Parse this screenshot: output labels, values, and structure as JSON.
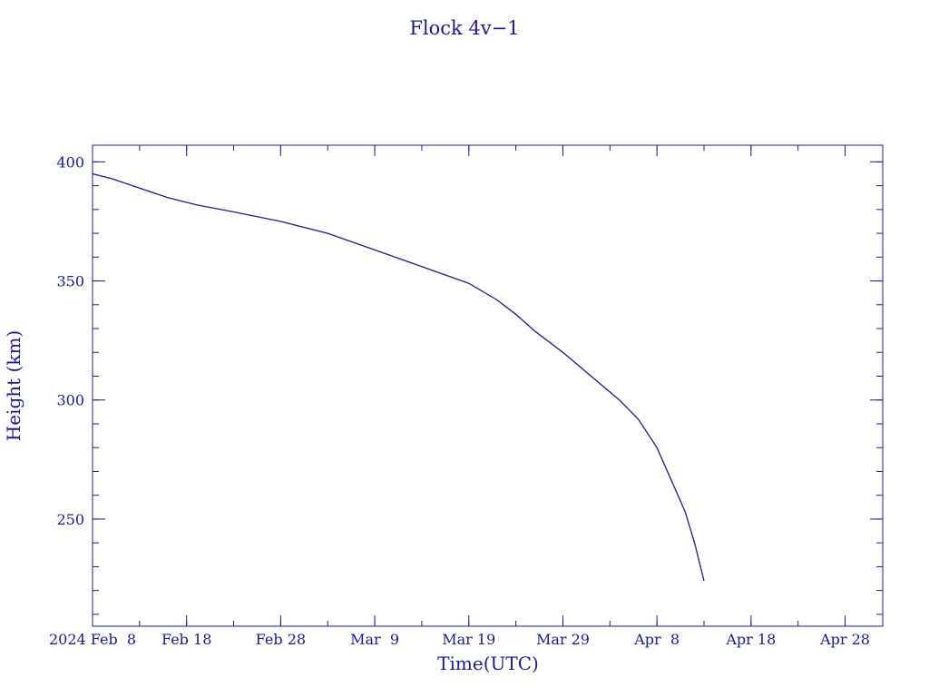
{
  "chart_data": {
    "type": "line",
    "title": "Flock 4v−1",
    "xlabel": "Time(UTC)",
    "ylabel": "Height (km)",
    "grid": false,
    "xlim": [
      "2024-02-08",
      "2024-05-02"
    ],
    "ylim": [
      205,
      407
    ],
    "x_ticks": [
      {
        "date": "2024-02-08",
        "label": "2024 Feb  8"
      },
      {
        "date": "2024-02-18",
        "label": "Feb 18"
      },
      {
        "date": "2024-02-28",
        "label": "Feb 28"
      },
      {
        "date": "2024-03-09",
        "label": "Mar  9"
      },
      {
        "date": "2024-03-19",
        "label": "Mar 19"
      },
      {
        "date": "2024-03-29",
        "label": "Mar 29"
      },
      {
        "date": "2024-04-08",
        "label": "Apr  8"
      },
      {
        "date": "2024-04-18",
        "label": "Apr 18"
      },
      {
        "date": "2024-04-28",
        "label": "Apr 28"
      }
    ],
    "x_minor_tick_days": 5,
    "y_ticks": [
      250,
      300,
      350,
      400
    ],
    "y_minor_step": 10,
    "color": "#1a1a8c",
    "series": [
      {
        "x": [
          "2024-02-08",
          "2024-02-10",
          "2024-02-13",
          "2024-02-16",
          "2024-02-19",
          "2024-02-23",
          "2024-02-28",
          "2024-03-04",
          "2024-03-09",
          "2024-03-14",
          "2024-03-19",
          "2024-03-22",
          "2024-03-24",
          "2024-03-26",
          "2024-03-29",
          "2024-04-01",
          "2024-04-04",
          "2024-04-06",
          "2024-04-08",
          "2024-04-10",
          "2024-04-11",
          "2024-04-12",
          "2024-04-13"
        ],
        "y": [
          395,
          393,
          389,
          385,
          382,
          379,
          375,
          370,
          363,
          356,
          349,
          342,
          336,
          329,
          320,
          310,
          300,
          292,
          280,
          262,
          253,
          240,
          224
        ]
      }
    ]
  }
}
